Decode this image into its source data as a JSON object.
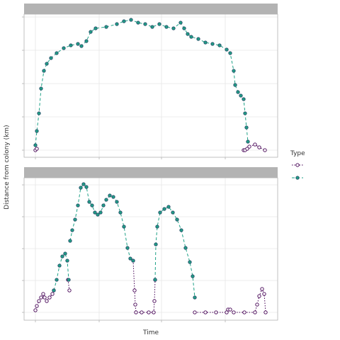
{
  "chart_data": [
    {
      "type": "line",
      "ylabel": "Distance from colony (km)",
      "legend_title": "Type",
      "grid": true,
      "xlim": [
        0,
        358
      ],
      "xticks": [
        16,
        106,
        194,
        284
      ],
      "ylim": [
        -10,
        192
      ],
      "yticks": [
        0,
        47,
        94,
        141,
        188
      ],
      "series": [
        {
          "color": "#440154",
          "line_style": "dotted",
          "marker": "open",
          "x": [
            16,
            18,
            null,
            310,
            312,
            315,
            318,
            326,
            332,
            340
          ],
          "values": [
            0,
            2,
            null,
            0,
            0,
            2,
            5,
            8,
            4,
            0
          ]
        },
        {
          "color": "#1fa187",
          "line_style": "dashed",
          "marker": "filled",
          "x": [
            16,
            18,
            21,
            24,
            28,
            32,
            38,
            46,
            56,
            66,
            76,
            81,
            88,
            94,
            101,
            116,
            131,
            141,
            151,
            161,
            171,
            181,
            191,
            201,
            211,
            221,
            226,
            231,
            236,
            246,
            256,
            266,
            276,
            286,
            291,
            296,
            298,
            302,
            306,
            310,
            312,
            314,
            316
          ],
          "values": [
            7,
            27,
            52,
            87,
            112,
            122,
            130,
            137,
            144,
            148,
            150,
            147,
            154,
            167,
            172,
            174,
            178,
            182,
            184,
            180,
            178,
            174,
            178,
            174,
            172,
            180,
            172,
            164,
            160,
            157,
            152,
            150,
            148,
            142,
            137,
            112,
            92,
            82,
            77,
            72,
            52,
            32,
            12
          ]
        }
      ]
    },
    {
      "type": "line",
      "xlabel": "Time",
      "grid": true,
      "xlim": [
        0,
        358
      ],
      "xticks": [
        16,
        106,
        194,
        284
      ],
      "ylim": [
        -11,
        190
      ],
      "yticks": [
        0,
        45,
        90,
        135,
        180
      ],
      "series": [
        {
          "color": "#440154",
          "line_style": "dotted",
          "marker": "open",
          "x": [
            16,
            18,
            21,
            24,
            27,
            29,
            32,
            36,
            40,
            42,
            null,
            62,
            64,
            null,
            154,
            156,
            157,
            158,
            166,
            176,
            183,
            184,
            185,
            null,
            241,
            256,
            271,
            286,
            288,
            291,
            296,
            311,
            326,
            329,
            332,
            336,
            339,
            341
          ],
          "values": [
            3,
            9,
            16,
            21,
            26,
            21,
            16,
            21,
            26,
            31,
            null,
            46,
            31,
            null,
            73,
            31,
            11,
            0,
            0,
            0,
            0,
            16,
            46,
            null,
            0,
            0,
            0,
            0,
            4,
            4,
            0,
            0,
            0,
            11,
            23,
            33,
            26,
            0
          ]
        },
        {
          "color": "#1fa187",
          "line_style": "dashed",
          "marker": "filled",
          "x": [
            42,
            46,
            50,
            54,
            58,
            61,
            63,
            null,
            65,
            68,
            72,
            76,
            80,
            84,
            88,
            92,
            96,
            100,
            104,
            108,
            112,
            116,
            121,
            126,
            131,
            136,
            141,
            146,
            150,
            154,
            null,
            185,
            186,
            188,
            192,
            198,
            204,
            210,
            216,
            222,
            228,
            234,
            238,
            241
          ],
          "values": [
            31,
            46,
            66,
            79,
            83,
            73,
            46,
            null,
            101,
            116,
            131,
            151,
            176,
            181,
            177,
            156,
            151,
            141,
            138,
            141,
            151,
            159,
            165,
            163,
            156,
            141,
            121,
            91,
            76,
            73,
            null,
            46,
            96,
            121,
            141,
            146,
            149,
            141,
            131,
            116,
            91,
            71,
            51,
            21
          ]
        }
      ]
    }
  ]
}
